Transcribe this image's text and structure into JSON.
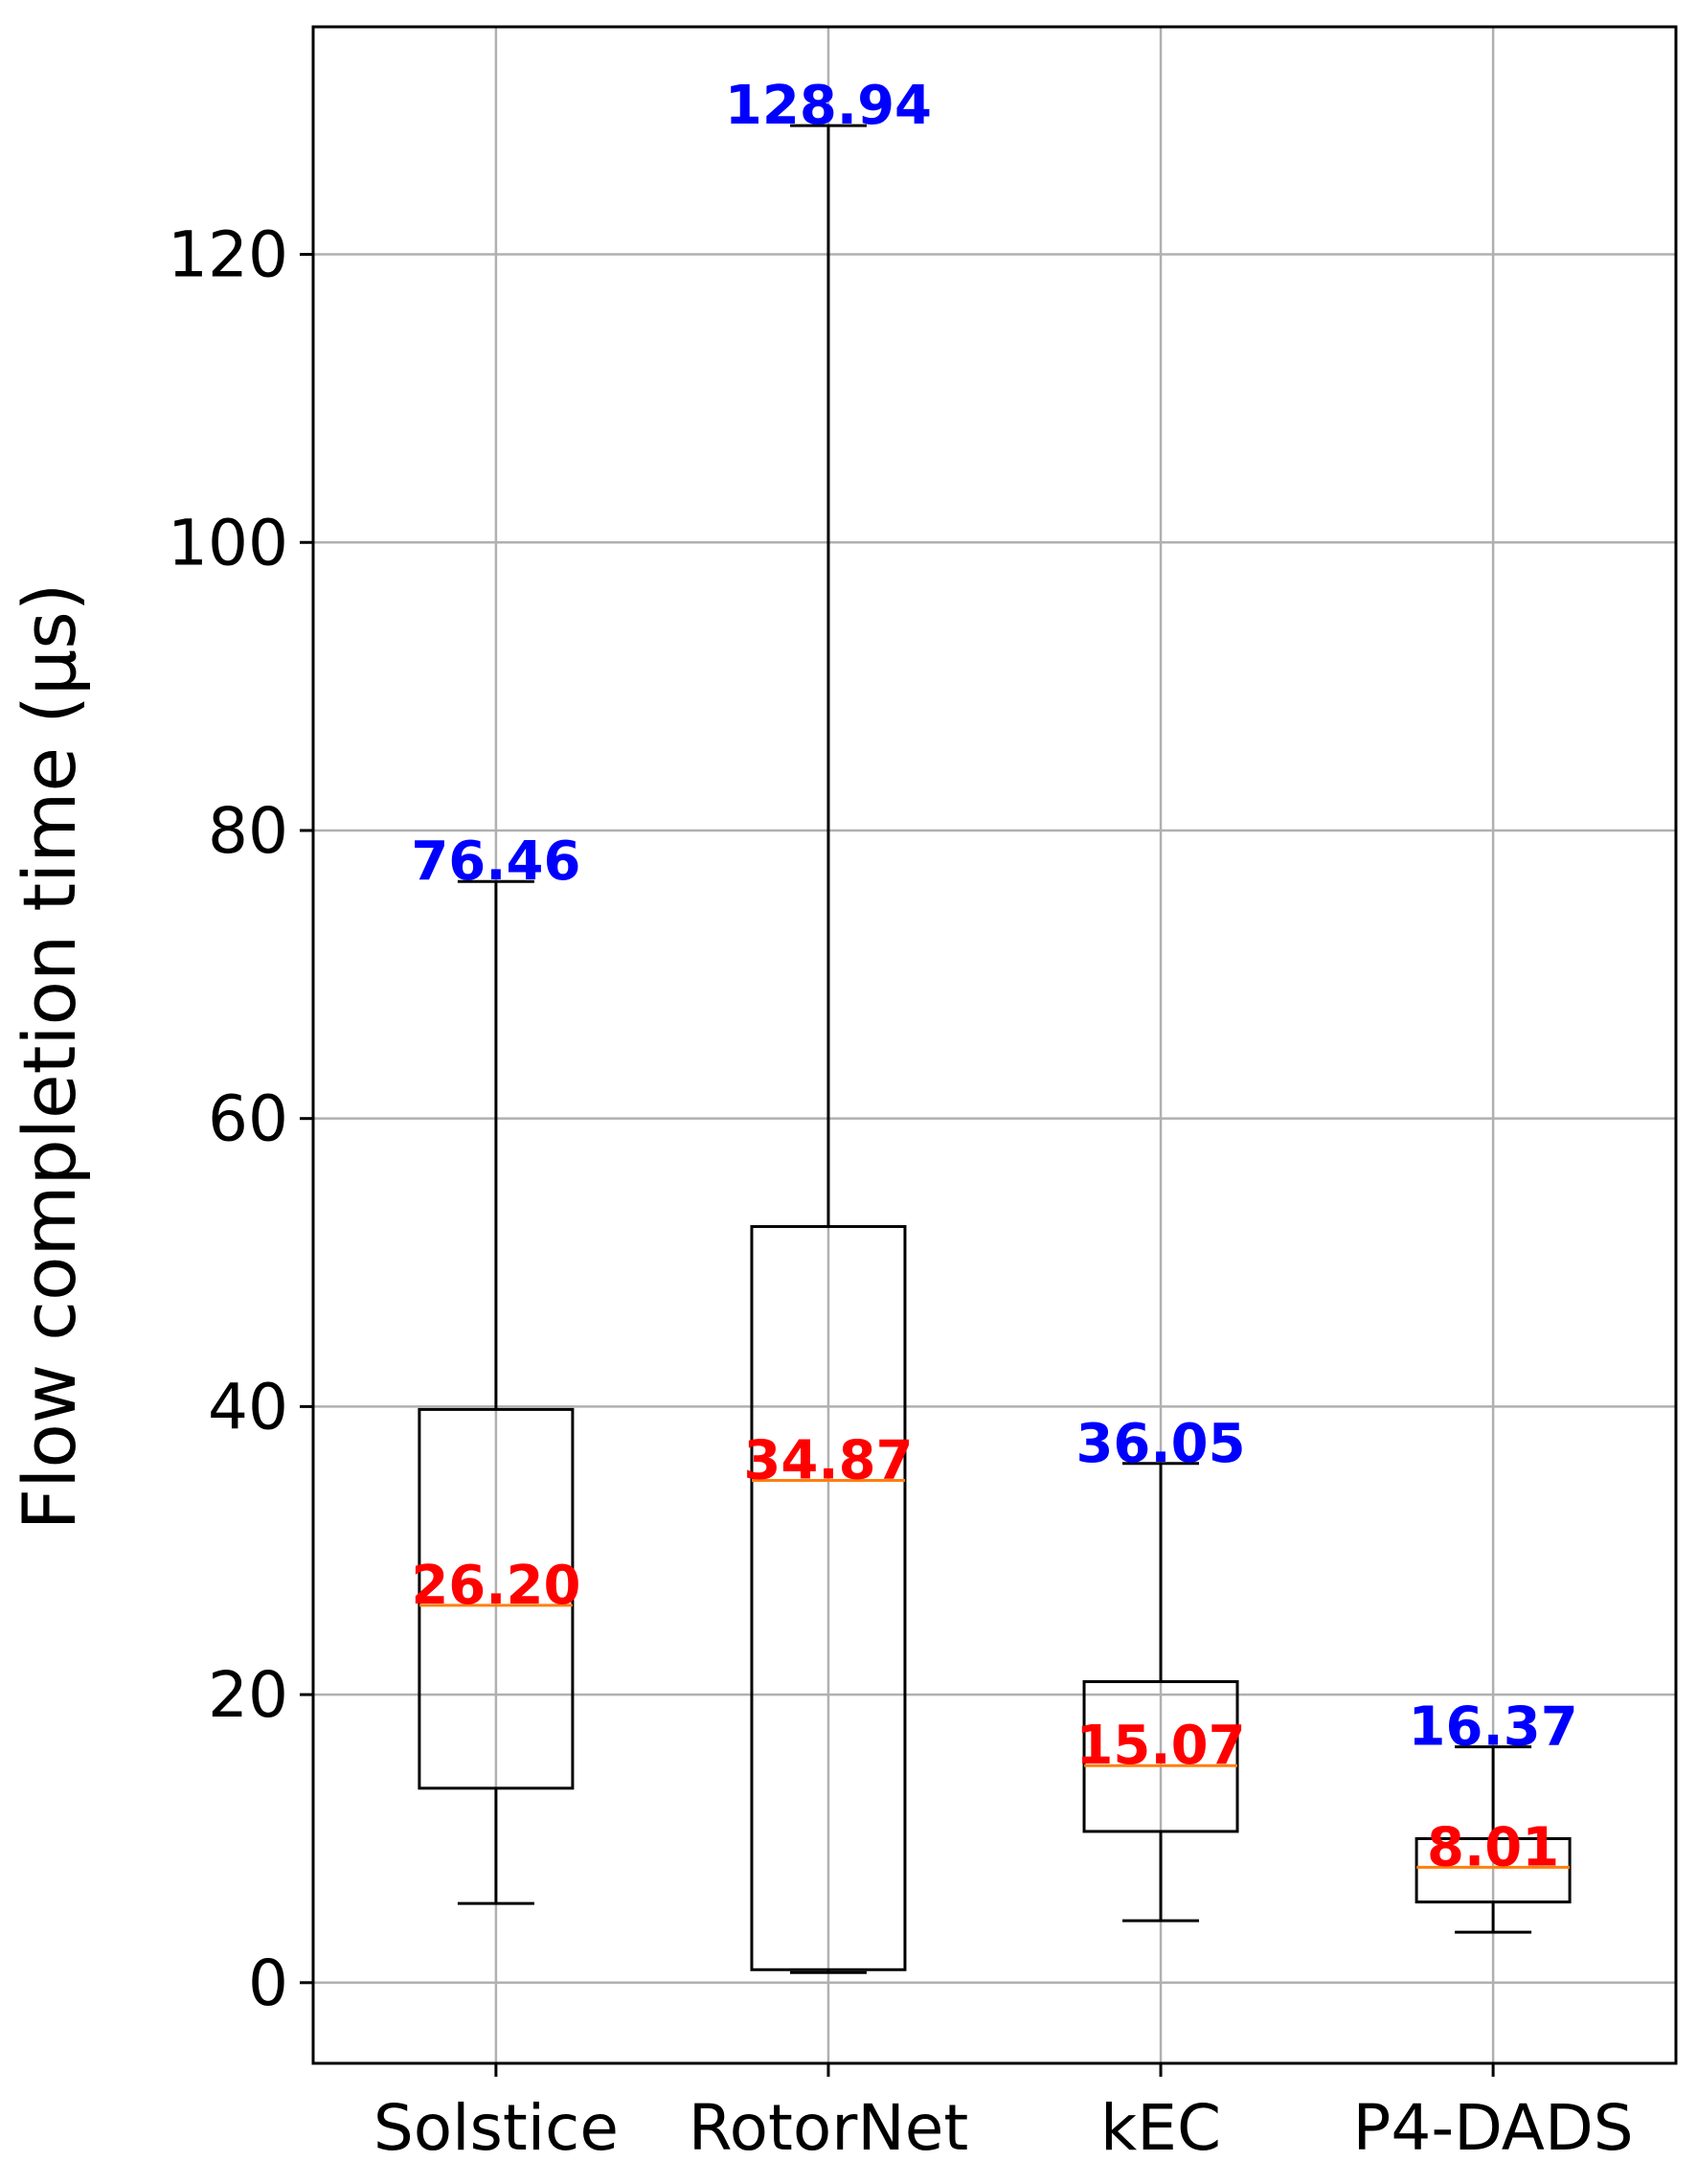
{
  "chart_data": {
    "type": "box",
    "title": "",
    "xlabel": "",
    "ylabel": "Flow completion time (µs)",
    "ylim": [
      -5.6,
      135.8
    ],
    "yticks": [
      0,
      20,
      40,
      60,
      80,
      100,
      120
    ],
    "grid": true,
    "categories": [
      "Solstice",
      "RotorNet",
      "kEC",
      "P4-DADS"
    ],
    "boxes": [
      {
        "whisker_low": 5.5,
        "q1": 13.5,
        "median": 26.2,
        "q3": 39.8,
        "whisker_high": 76.46,
        "median_label": "26.20",
        "max_label": "76.46"
      },
      {
        "whisker_low": 0.7,
        "q1": 0.9,
        "median": 34.87,
        "q3": 52.5,
        "whisker_high": 128.94,
        "median_label": "34.87",
        "max_label": "128.94"
      },
      {
        "whisker_low": 4.3,
        "q1": 10.5,
        "median": 15.07,
        "q3": 20.9,
        "whisker_high": 36.05,
        "median_label": "15.07",
        "max_label": "36.05"
      },
      {
        "whisker_low": 3.5,
        "q1": 5.6,
        "median": 8.01,
        "q3": 10.0,
        "whisker_high": 16.37,
        "median_label": "8.01",
        "max_label": "16.37"
      }
    ],
    "colors": {
      "box": "#000000",
      "median_line": "#ff7f0e",
      "median_label": "#ff0000",
      "max_label": "#0000ff",
      "grid": "#b0b0b0"
    }
  }
}
